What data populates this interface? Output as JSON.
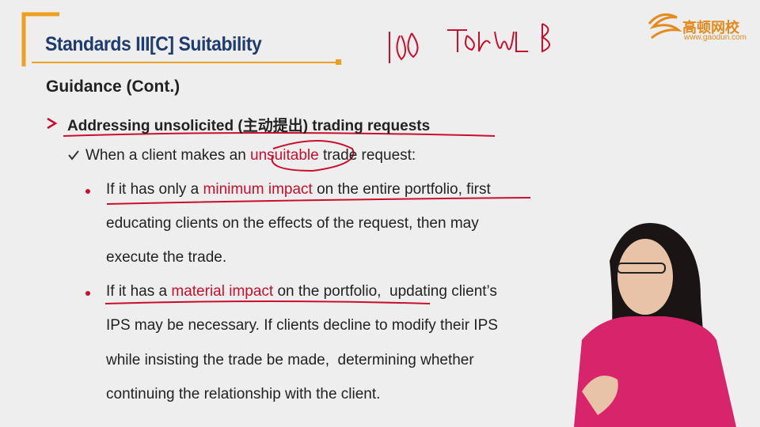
{
  "header": {
    "title": "Standards III[C] Suitability"
  },
  "logo": {
    "name": "高顿网校",
    "url": "www.gaodun.com"
  },
  "section": "Guidance (Cont.)",
  "bullet": "Addressing unsolicited (主动提出) trading requests",
  "sub_bullet": [
    {
      "text": "When a client makes an "
    },
    {
      "text": "unsuitable",
      "color": "#c8102e"
    },
    {
      "text": " trade request:"
    }
  ],
  "items": [
    {
      "lines": [
        [
          {
            "text": "If it has only a "
          },
          {
            "text": "minimum impact",
            "color": "#c8102e"
          },
          {
            "text": " on the entire portfolio, first"
          }
        ],
        [
          {
            "text": "educating clients on the effects of the request, then may"
          }
        ],
        [
          {
            "text": "execute the trade."
          }
        ]
      ]
    },
    {
      "lines": [
        [
          {
            "text": "If it has a "
          },
          {
            "text": "material impact",
            "color": "#c8102e"
          },
          {
            "text": " on the portfolio,  updating client’s"
          }
        ],
        [
          {
            "text": "IPS may be necessary. If clients decline to modify their IPS"
          }
        ],
        [
          {
            "text": "while insisting the trade be made,  determining whether"
          }
        ],
        [
          {
            "text": "continuing the relationship with the client."
          }
        ]
      ]
    }
  ]
}
